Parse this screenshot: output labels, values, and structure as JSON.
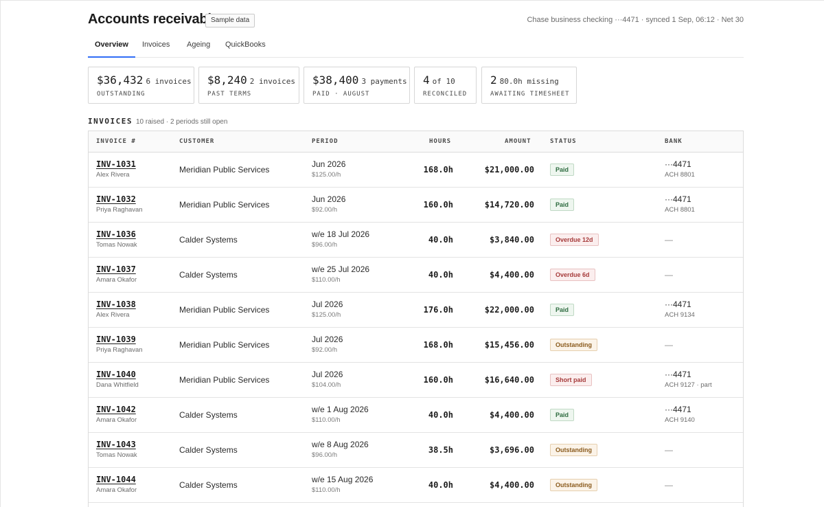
{
  "header": {
    "title": "Accounts receivable",
    "badge": "Sample data",
    "sync_status": "Chase business checking ···4471 · synced 1 Sep, 06:12 · Net 30"
  },
  "tabs": [
    {
      "label": "Overview",
      "active": true
    },
    {
      "label": "Invoices",
      "active": false
    },
    {
      "label": "Ageing",
      "active": false
    },
    {
      "label": "QuickBooks",
      "active": false
    }
  ],
  "stats": [
    {
      "value": "$36,432",
      "detail": "6 invoices",
      "caption": "OUTSTANDING"
    },
    {
      "value": "$8,240",
      "detail": "2 invoices",
      "caption": "PAST TERMS"
    },
    {
      "value": "$38,400",
      "detail": "3 payments",
      "caption": "PAID · AUGUST"
    },
    {
      "value": "4",
      "detail": "of 10",
      "caption": "RECONCILED"
    },
    {
      "value": "2",
      "detail": "80.0h missing",
      "caption": "AWAITING TIMESHEET"
    }
  ],
  "invoices_section": {
    "title": "INVOICES",
    "subtitle": "10 raised · 2 periods still open"
  },
  "table": {
    "columns": [
      "INVOICE #",
      "CUSTOMER",
      "PERIOD",
      "HOURS",
      "AMOUNT",
      "STATUS",
      "BANK"
    ],
    "rows": [
      {
        "id": "INV-1031",
        "person": "Alex Rivera",
        "customer": "Meridian Public Services",
        "period": "Jun 2026",
        "rate": "$125.00/h",
        "hours": "168.0h",
        "amount": "$21,000.00",
        "status": "Paid",
        "status_kind": "paid",
        "bank": "···4471",
        "bank_sub": "ACH 8801"
      },
      {
        "id": "INV-1032",
        "person": "Priya Raghavan",
        "customer": "Meridian Public Services",
        "period": "Jun 2026",
        "rate": "$92.00/h",
        "hours": "160.0h",
        "amount": "$14,720.00",
        "status": "Paid",
        "status_kind": "paid",
        "bank": "···4471",
        "bank_sub": "ACH 8801"
      },
      {
        "id": "INV-1036",
        "person": "Tomas Nowak",
        "customer": "Calder Systems",
        "period": "w/e 18 Jul 2026",
        "rate": "$96.00/h",
        "hours": "40.0h",
        "amount": "$3,840.00",
        "status": "Overdue 12d",
        "status_kind": "overdue",
        "bank": "—",
        "bank_sub": ""
      },
      {
        "id": "INV-1037",
        "person": "Amara Okafor",
        "customer": "Calder Systems",
        "period": "w/e 25 Jul 2026",
        "rate": "$110.00/h",
        "hours": "40.0h",
        "amount": "$4,400.00",
        "status": "Overdue 6d",
        "status_kind": "overdue",
        "bank": "—",
        "bank_sub": ""
      },
      {
        "id": "INV-1038",
        "person": "Alex Rivera",
        "customer": "Meridian Public Services",
        "period": "Jul 2026",
        "rate": "$125.00/h",
        "hours": "176.0h",
        "amount": "$22,000.00",
        "status": "Paid",
        "status_kind": "paid",
        "bank": "···4471",
        "bank_sub": "ACH 9134"
      },
      {
        "id": "INV-1039",
        "person": "Priya Raghavan",
        "customer": "Meridian Public Services",
        "period": "Jul 2026",
        "rate": "$92.00/h",
        "hours": "168.0h",
        "amount": "$15,456.00",
        "status": "Outstanding",
        "status_kind": "outstanding",
        "bank": "—",
        "bank_sub": ""
      },
      {
        "id": "INV-1040",
        "person": "Dana Whitfield",
        "customer": "Meridian Public Services",
        "period": "Jul 2026",
        "rate": "$104.00/h",
        "hours": "160.0h",
        "amount": "$16,640.00",
        "status": "Short paid",
        "status_kind": "short",
        "bank": "···4471",
        "bank_sub": "ACH 9127 · part"
      },
      {
        "id": "INV-1042",
        "person": "Amara Okafor",
        "customer": "Calder Systems",
        "period": "w/e 1 Aug 2026",
        "rate": "$110.00/h",
        "hours": "40.0h",
        "amount": "$4,400.00",
        "status": "Paid",
        "status_kind": "paid",
        "bank": "···4471",
        "bank_sub": "ACH 9140"
      },
      {
        "id": "INV-1043",
        "person": "Tomas Nowak",
        "customer": "Calder Systems",
        "period": "w/e 8 Aug 2026",
        "rate": "$96.00/h",
        "hours": "38.5h",
        "amount": "$3,696.00",
        "status": "Outstanding",
        "status_kind": "outstanding",
        "bank": "—",
        "bank_sub": ""
      },
      {
        "id": "INV-1044",
        "person": "Amara Okafor",
        "customer": "Calder Systems",
        "period": "w/e 15 Aug 2026",
        "rate": "$110.00/h",
        "hours": "40.0h",
        "amount": "$4,400.00",
        "status": "Outstanding",
        "status_kind": "outstanding",
        "bank": "—",
        "bank_sub": ""
      }
    ]
  }
}
